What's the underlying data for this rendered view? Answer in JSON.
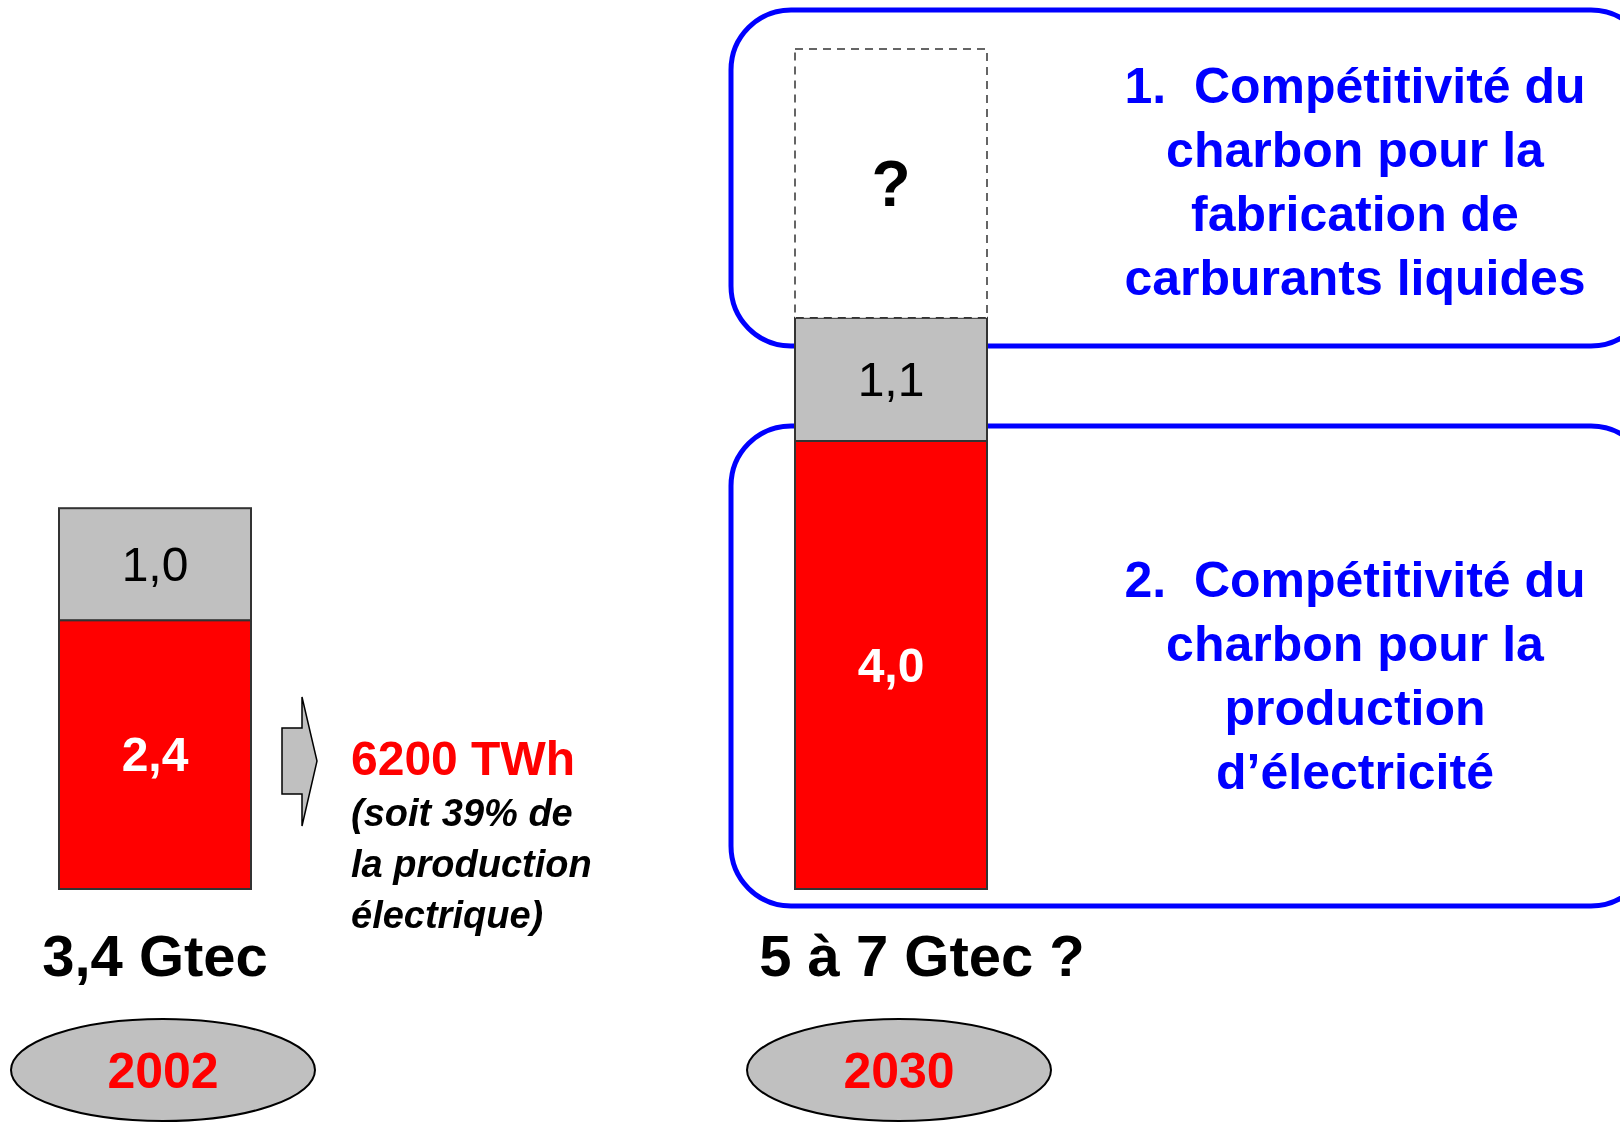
{
  "chart_data": {
    "type": "bar",
    "stacked": true,
    "categories": [
      "2002",
      "2030"
    ],
    "series": [
      {
        "color": "#ff0000",
        "values": [
          2.4,
          4.0
        ],
        "value_labels": [
          "2,4",
          "4,0"
        ]
      },
      {
        "color": "#c0c0c0",
        "values": [
          1.0,
          1.1
        ],
        "value_labels": [
          "1,0",
          "1,1"
        ]
      },
      {
        "color": "#ffffff",
        "values": [
          null,
          2.4
        ],
        "value_labels": [
          null,
          "?"
        ],
        "line_style": "dashed"
      }
    ],
    "totals": [
      "3,4 Gtec",
      "5 à 7 Gtec ?"
    ],
    "annotations": [
      "6200 TWh",
      "(soit 39% de\nla production\nélectrique)",
      "1.  Compétitivité du\ncharbon pour la\nfabrication de\ncarburants liquides",
      "2.  Compétitivité du\ncharbon pour la\nproduction\nd’électricité"
    ],
    "data_labels": false
  }
}
